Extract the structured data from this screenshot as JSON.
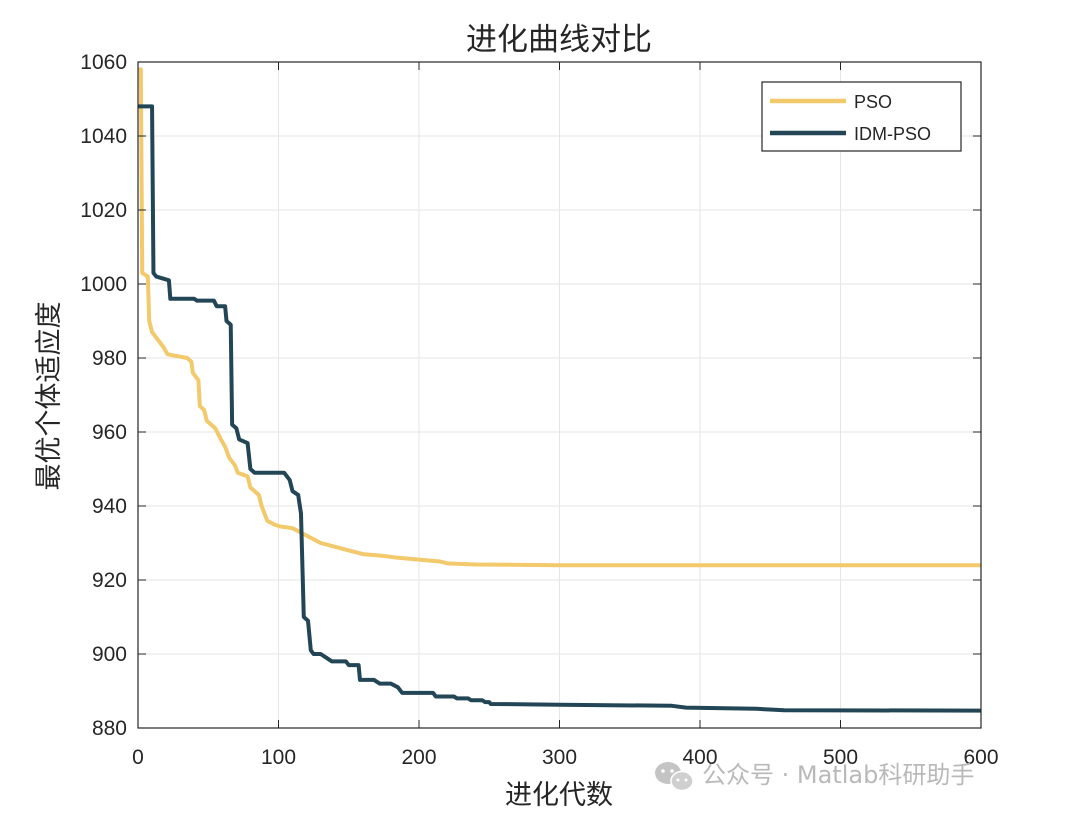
{
  "chart_data": {
    "type": "line",
    "title": "进化曲线对比",
    "xlabel": "进化代数",
    "ylabel": "最优个体适应度",
    "xlim": [
      0,
      600
    ],
    "ylim": [
      880,
      1060
    ],
    "xticks": [
      "0",
      "100",
      "200",
      "300",
      "400",
      "500",
      "600"
    ],
    "yticks": [
      "880",
      "900",
      "920",
      "940",
      "960",
      "980",
      "1000",
      "1020",
      "1040",
      "1060"
    ],
    "xtick_values": [
      0,
      100,
      200,
      300,
      400,
      500,
      600
    ],
    "ytick_values": [
      880,
      900,
      920,
      940,
      960,
      980,
      1000,
      1020,
      1040,
      1060
    ],
    "grid": true,
    "legend_position": "top-right",
    "series": [
      {
        "name": "PSO",
        "color": "#f2c96b",
        "points": [
          [
            0,
            1058
          ],
          [
            2,
            1058
          ],
          [
            3,
            1003
          ],
          [
            7,
            1002
          ],
          [
            8,
            990
          ],
          [
            10,
            987
          ],
          [
            14,
            985
          ],
          [
            18,
            983
          ],
          [
            21,
            981
          ],
          [
            35,
            980
          ],
          [
            38,
            979
          ],
          [
            39,
            976
          ],
          [
            43,
            974
          ],
          [
            44,
            967
          ],
          [
            47,
            966
          ],
          [
            49,
            963
          ],
          [
            55,
            961
          ],
          [
            59,
            958
          ],
          [
            62,
            956
          ],
          [
            65,
            953
          ],
          [
            69,
            951
          ],
          [
            71,
            949
          ],
          [
            78,
            948
          ],
          [
            80,
            945
          ],
          [
            86,
            943
          ],
          [
            88,
            940
          ],
          [
            92,
            936
          ],
          [
            97,
            935
          ],
          [
            101,
            934.5
          ],
          [
            110,
            934
          ],
          [
            115,
            933
          ],
          [
            120,
            932
          ],
          [
            125,
            931
          ],
          [
            130,
            930
          ],
          [
            140,
            929
          ],
          [
            150,
            928
          ],
          [
            160,
            927
          ],
          [
            175,
            926.5
          ],
          [
            185,
            926
          ],
          [
            200,
            925.5
          ],
          [
            215,
            925
          ],
          [
            220,
            924.5
          ],
          [
            240,
            924.2
          ],
          [
            300,
            924
          ],
          [
            600,
            924
          ]
        ]
      },
      {
        "name": "IDM-PSO",
        "color": "#234657",
        "points": [
          [
            0,
            1048
          ],
          [
            10,
            1048
          ],
          [
            11,
            1003
          ],
          [
            13,
            1002
          ],
          [
            22,
            1001
          ],
          [
            23,
            996
          ],
          [
            40,
            996
          ],
          [
            42,
            995.5
          ],
          [
            54,
            995.5
          ],
          [
            56,
            994
          ],
          [
            62,
            994
          ],
          [
            63,
            990
          ],
          [
            66,
            989
          ],
          [
            67,
            962
          ],
          [
            70,
            961
          ],
          [
            72,
            958
          ],
          [
            78,
            957
          ],
          [
            80,
            950
          ],
          [
            83,
            949
          ],
          [
            104,
            949
          ],
          [
            108,
            947
          ],
          [
            110,
            944
          ],
          [
            114,
            943
          ],
          [
            116,
            938
          ],
          [
            118,
            910
          ],
          [
            121,
            909
          ],
          [
            123,
            901
          ],
          [
            125,
            900
          ],
          [
            130,
            900
          ],
          [
            134,
            899
          ],
          [
            138,
            898
          ],
          [
            148,
            898
          ],
          [
            150,
            897
          ],
          [
            157,
            897
          ],
          [
            158,
            893
          ],
          [
            168,
            893
          ],
          [
            172,
            892
          ],
          [
            180,
            892
          ],
          [
            185,
            891
          ],
          [
            188,
            889.5
          ],
          [
            210,
            889.5
          ],
          [
            212,
            888.5
          ],
          [
            225,
            888.5
          ],
          [
            227,
            888
          ],
          [
            235,
            888
          ],
          [
            237,
            887.5
          ],
          [
            245,
            887.5
          ],
          [
            247,
            887
          ],
          [
            250,
            887
          ],
          [
            251,
            886.5
          ],
          [
            300,
            886.3
          ],
          [
            380,
            886
          ],
          [
            390,
            885.5
          ],
          [
            440,
            885.2
          ],
          [
            460,
            884.8
          ],
          [
            600,
            884.7
          ]
        ]
      }
    ]
  },
  "watermark": {
    "text": "公众号 · Matlab科研助手",
    "icon": "wechat-icon"
  }
}
